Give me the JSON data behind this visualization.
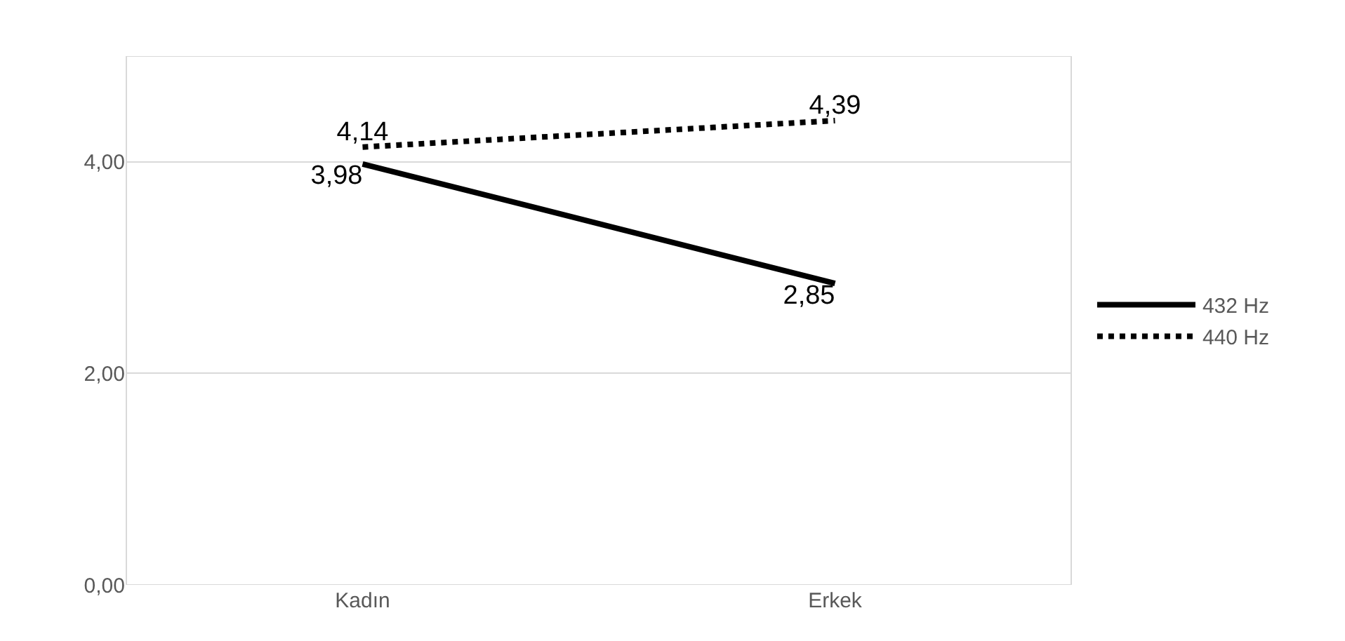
{
  "chart_data": {
    "type": "line",
    "categories": [
      "Kadın",
      "Erkek"
    ],
    "series": [
      {
        "name": "432 Hz",
        "color": "#000000",
        "values": [
          3.98,
          2.85
        ],
        "value_labels": [
          "3,98",
          "2,85"
        ],
        "line_style": "solid"
      },
      {
        "name": "440 Hz",
        "color": "#000000",
        "values": [
          4.14,
          4.39
        ],
        "value_labels": [
          "4,14",
          "4,39"
        ],
        "line_style": "dotted"
      }
    ],
    "ylim": [
      0,
      5
    ],
    "yticks": [
      {
        "value": 0,
        "label": "0,00"
      },
      {
        "value": 2,
        "label": "2,00"
      },
      {
        "value": 4,
        "label": "4,00"
      }
    ],
    "grid": "y",
    "legend": "right",
    "marker": "none"
  }
}
